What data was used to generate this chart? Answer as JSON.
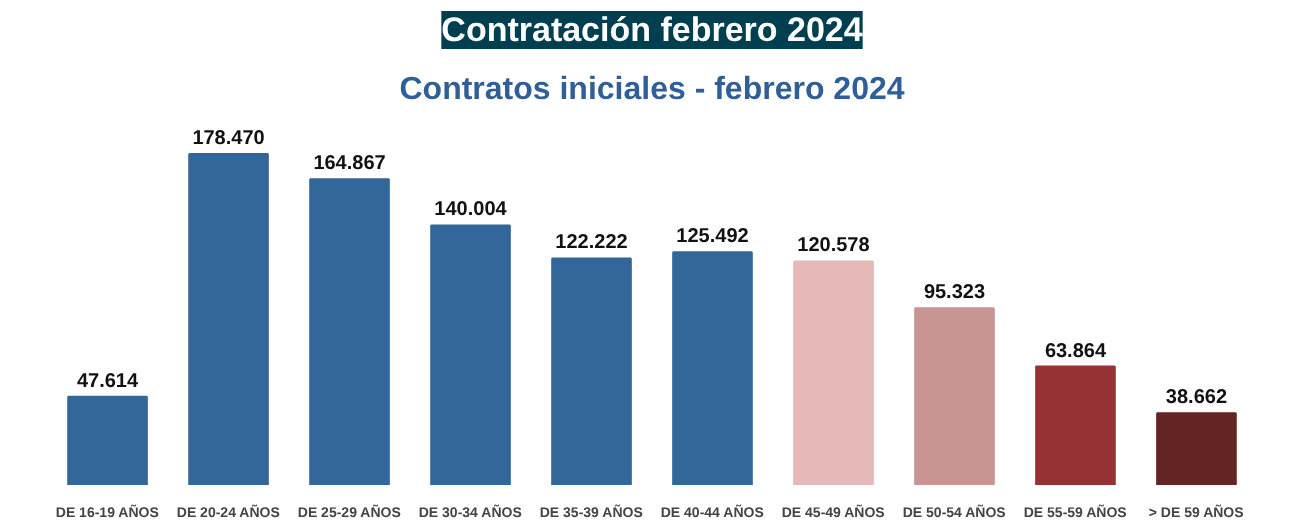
{
  "chart_data": {
    "type": "bar",
    "title": "Contratación febrero 2024",
    "subtitle": "Contratos iniciales - febrero 2024",
    "categories": [
      "DE 16-19 AÑOS",
      "DE 20-24 AÑOS",
      "DE 25-29 AÑOS",
      "DE 30-34 AÑOS",
      "DE 35-39 AÑOS",
      "DE 40-44 AÑOS",
      "DE 45-49 AÑOS",
      "DE 50-54 AÑOS",
      "DE 55-59 AÑOS",
      "> DE 59 AÑOS"
    ],
    "values": [
      47614,
      178470,
      164867,
      140004,
      122222,
      125492,
      120578,
      95323,
      63864,
      38662
    ],
    "colors": [
      "#336699",
      "#336699",
      "#336699",
      "#336699",
      "#336699",
      "#336699",
      "#e6b8b7",
      "#c99593",
      "#963234",
      "#632523"
    ],
    "value_labels": [
      "47.614",
      "178.470",
      "164.867",
      "140.004",
      "122.222",
      "125.492",
      "120.578",
      "95.323",
      "63.864",
      "38.662"
    ],
    "grid": false
  }
}
